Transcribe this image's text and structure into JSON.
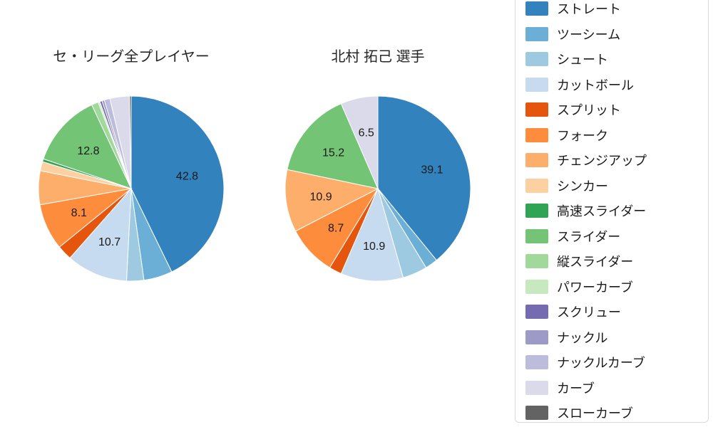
{
  "chart_data": [
    {
      "type": "pie",
      "title": "セ・リーグ全プレイヤー",
      "start_angle": "top",
      "direction": "clockwise",
      "label_unit": "percent",
      "slices": [
        {
          "name": "ストレート",
          "value": 42.8,
          "label": "42.8",
          "color": "#3182bd"
        },
        {
          "name": "ツーシーム",
          "value": 5.0,
          "label": null,
          "color": "#6baed6"
        },
        {
          "name": "シュート",
          "value": 3.0,
          "label": null,
          "color": "#9ecae1"
        },
        {
          "name": "カットボール",
          "value": 10.7,
          "label": "10.7",
          "color": "#c6dbef"
        },
        {
          "name": "スプリット",
          "value": 2.6,
          "label": null,
          "color": "#e6550d"
        },
        {
          "name": "フォーク",
          "value": 8.1,
          "label": "8.1",
          "color": "#fd8d3c"
        },
        {
          "name": "チェンジアップ",
          "value": 5.9,
          "label": null,
          "color": "#fdae6b"
        },
        {
          "name": "シンカー",
          "value": 1.6,
          "label": null,
          "color": "#fdd0a2"
        },
        {
          "name": "高速スライダー",
          "value": 0.5,
          "label": null,
          "color": "#31a354"
        },
        {
          "name": "スライダー",
          "value": 12.8,
          "label": "12.8",
          "color": "#74c476"
        },
        {
          "name": "縦スライダー",
          "value": 1.2,
          "label": null,
          "color": "#a1d99b"
        },
        {
          "name": "パワーカーブ",
          "value": 0.3,
          "label": null,
          "color": "#c7e9c0"
        },
        {
          "name": "スクリュー",
          "value": 0.4,
          "label": null,
          "color": "#756bb1"
        },
        {
          "name": "ナックル",
          "value": 0.4,
          "label": null,
          "color": "#9e9ac8"
        },
        {
          "name": "ナックルカーブ",
          "value": 1.0,
          "label": null,
          "color": "#bcbddc"
        },
        {
          "name": "カーブ",
          "value": 3.4,
          "label": null,
          "color": "#dadaeb"
        },
        {
          "name": "スローカーブ",
          "value": 0.3,
          "label": null,
          "color": "#636363"
        }
      ]
    },
    {
      "type": "pie",
      "title": "北村 拓己  選手",
      "start_angle": "top",
      "direction": "clockwise",
      "label_unit": "percent",
      "slices": [
        {
          "name": "ストレート",
          "value": 39.1,
          "label": "39.1",
          "color": "#3182bd"
        },
        {
          "name": "ツーシーム",
          "value": 2.2,
          "label": null,
          "color": "#6baed6"
        },
        {
          "name": "シュート",
          "value": 4.3,
          "label": null,
          "color": "#9ecae1"
        },
        {
          "name": "カットボール",
          "value": 10.9,
          "label": "10.9",
          "color": "#c6dbef"
        },
        {
          "name": "スプリット",
          "value": 2.2,
          "label": null,
          "color": "#e6550d"
        },
        {
          "name": "フォーク",
          "value": 8.7,
          "label": "8.7",
          "color": "#fd8d3c"
        },
        {
          "name": "チェンジアップ",
          "value": 10.9,
          "label": "10.9",
          "color": "#fdae6b"
        },
        {
          "name": "スライダー",
          "value": 15.2,
          "label": "15.2",
          "color": "#74c476"
        },
        {
          "name": "カーブ",
          "value": 6.5,
          "label": "6.5",
          "color": "#dadaeb"
        }
      ]
    }
  ],
  "legend": {
    "position": "right",
    "entries": [
      {
        "label": "ストレート",
        "color": "#3182bd"
      },
      {
        "label": "ツーシーム",
        "color": "#6baed6"
      },
      {
        "label": "シュート",
        "color": "#9ecae1"
      },
      {
        "label": "カットボール",
        "color": "#c6dbef"
      },
      {
        "label": "スプリット",
        "color": "#e6550d"
      },
      {
        "label": "フォーク",
        "color": "#fd8d3c"
      },
      {
        "label": "チェンジアップ",
        "color": "#fdae6b"
      },
      {
        "label": "シンカー",
        "color": "#fdd0a2"
      },
      {
        "label": "高速スライダー",
        "color": "#31a354"
      },
      {
        "label": "スライダー",
        "color": "#74c476"
      },
      {
        "label": "縦スライダー",
        "color": "#a1d99b"
      },
      {
        "label": "パワーカーブ",
        "color": "#c7e9c0"
      },
      {
        "label": "スクリュー",
        "color": "#756bb1"
      },
      {
        "label": "ナックル",
        "color": "#9e9ac8"
      },
      {
        "label": "ナックルカーブ",
        "color": "#bcbddc"
      },
      {
        "label": "カーブ",
        "color": "#dadaeb"
      },
      {
        "label": "スローカーブ",
        "color": "#636363"
      }
    ]
  },
  "colors": {
    "background": "#ffffff",
    "legend_border": "#d9d9d9",
    "text": "#262626"
  }
}
